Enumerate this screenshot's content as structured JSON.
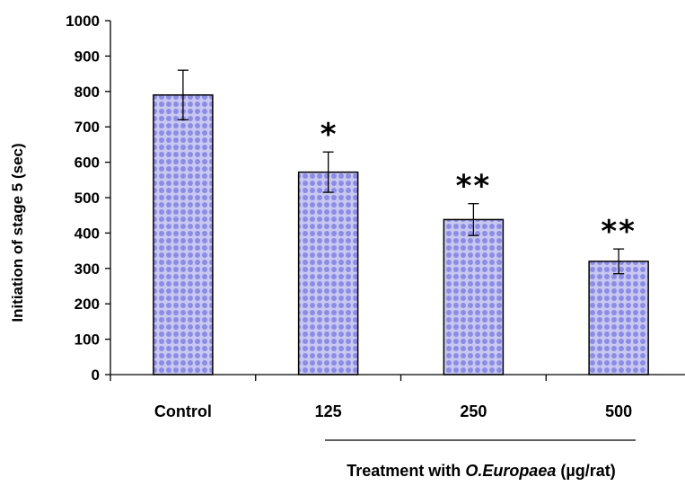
{
  "chart_data": {
    "type": "bar",
    "categories": [
      "Control",
      "125",
      "250",
      "500"
    ],
    "values": [
      790,
      572,
      438,
      320
    ],
    "errors": [
      70,
      57,
      45,
      35
    ],
    "significance": [
      "",
      "*",
      "**",
      "**"
    ],
    "ylabel": "Initiation of stage 5 (sec)",
    "xlabel": {
      "prefix": "Treatment with ",
      "species": "O.Europaea",
      "suffix": " (µg/rat)"
    },
    "ylim": [
      0,
      1000
    ],
    "yticks": [
      "0",
      "100",
      "200",
      "300",
      "400",
      "500",
      "600",
      "700",
      "800",
      "900",
      "1000"
    ],
    "grid": false,
    "colors": {
      "bar_fill": "#c8c8f0",
      "bar_dots": "#8c8ce6",
      "axis": "#000000"
    }
  }
}
